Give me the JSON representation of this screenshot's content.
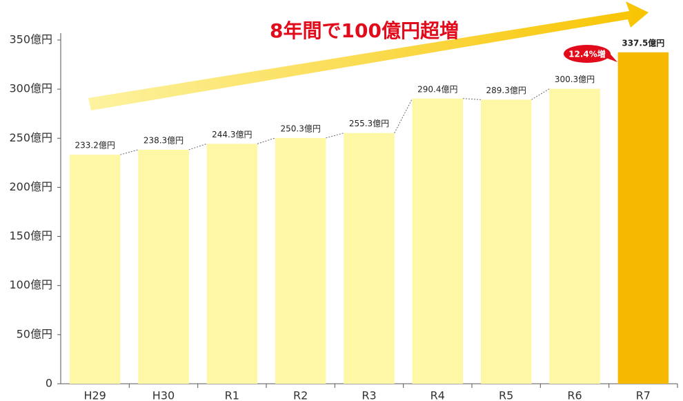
{
  "chart_data": {
    "type": "bar",
    "title": "8年間で100億円超増",
    "annotation": "12.4%増",
    "categories": [
      "H29",
      "H30",
      "R1",
      "R2",
      "R3",
      "R4",
      "R5",
      "R6",
      "R7"
    ],
    "values": [
      233.2,
      238.3,
      244.3,
      250.3,
      255.3,
      290.4,
      289.3,
      300.3,
      337.5
    ],
    "value_labels": [
      "233.2億円",
      "238.3億円",
      "244.3億円",
      "250.3億円",
      "255.3億円",
      "290.4億円",
      "289.3億円",
      "300.3億円",
      "337.5億円"
    ],
    "colors": [
      "#fdf7a6",
      "#fdf7a6",
      "#fdf7a6",
      "#fdf7a6",
      "#fdf7a6",
      "#fdf7a6",
      "#fdf7a6",
      "#fdf7a6",
      "#f6b900"
    ],
    "ylim": [
      0,
      350
    ],
    "yticks": [
      0,
      {
        "value": 50,
        "label": "50億円"
      },
      {
        "value": 100,
        "label": "100億円"
      },
      {
        "value": 150,
        "label": "150億円"
      },
      {
        "value": 200,
        "label": "200億円"
      },
      {
        "value": 250,
        "label": "250億円"
      },
      {
        "value": 300,
        "label": "300億円"
      },
      {
        "value": 350,
        "label": "350億円"
      }
    ],
    "grid": false
  }
}
